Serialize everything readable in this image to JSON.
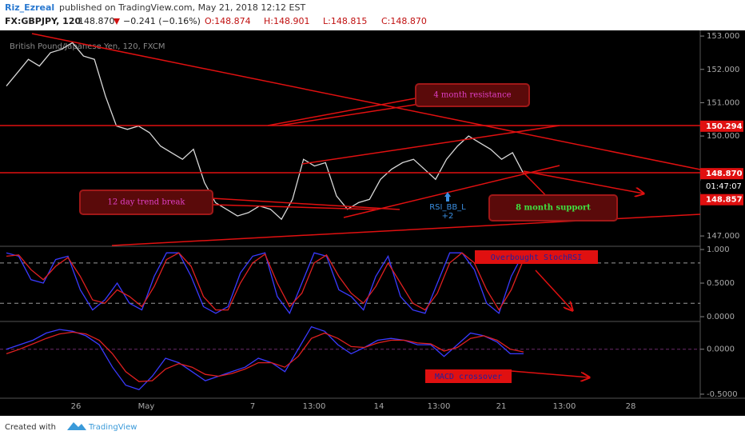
{
  "header": {
    "author": "Riz_Ezreal",
    "published": "published on TradingView.com, May 21, 2018 12:12 EST",
    "symbol": "FX:GBPJPY, 120",
    "last": "148.870",
    "change": "−0.241 (−0.16%)",
    "open": "O:148.874",
    "high": "H:148.901",
    "low": "L:148.815",
    "close": "C:148.870"
  },
  "chart_data": {
    "type": "line",
    "legend": "British Pound/Japanese Yen, 120, FXCM",
    "categories": [
      "26",
      "May",
      "7",
      "13:00",
      "14",
      "13:00",
      "21",
      "13:00",
      "28"
    ],
    "price": {
      "color": "#d8d8d8",
      "values": [
        151.5,
        151.9,
        152.3,
        152.1,
        152.5,
        152.6,
        152.8,
        152.4,
        152.3,
        151.2,
        150.3,
        150.2,
        150.3,
        150.1,
        149.7,
        149.5,
        149.3,
        149.6,
        148.6,
        148.0,
        147.8,
        147.6,
        147.7,
        147.9,
        147.8,
        147.5,
        148.1,
        149.3,
        149.1,
        149.2,
        148.2,
        147.8,
        148.0,
        148.1,
        148.7,
        149.0,
        149.2,
        149.3,
        149.0,
        148.7,
        149.3,
        149.7,
        150.0,
        149.8,
        149.6,
        149.3,
        149.5,
        148.87
      ],
      "ylim": [
        146.69,
        153.17
      ],
      "yticks": [
        {
          "value": 147,
          "label": "147.000"
        },
        {
          "value": 150,
          "label": "150.000"
        },
        {
          "value": 151,
          "label": "151.000"
        },
        {
          "value": 152,
          "label": "152.000"
        },
        {
          "value": 153,
          "label": "153.000"
        }
      ]
    },
    "badges": [
      {
        "value": 150.294,
        "label": "150.294"
      },
      {
        "value": 148.87,
        "label": "148.870"
      },
      {
        "value": 148.857,
        "label": "148.857"
      }
    ],
    "countdown": "01:47:07",
    "stoch": {
      "ylim": [
        -0.071,
        1.048
      ],
      "yticks": [
        {
          "value": 0,
          "label": "0.0000"
        },
        {
          "value": 0.5,
          "label": "0.5000"
        },
        {
          "value": 1,
          "label": "1.000"
        }
      ],
      "bands": [
        0.8,
        0.2
      ],
      "series": [
        {
          "color": "#3a3aff",
          "values": [
            0.95,
            0.9,
            0.55,
            0.5,
            0.85,
            0.9,
            0.4,
            0.1,
            0.25,
            0.5,
            0.2,
            0.1,
            0.6,
            0.95,
            0.95,
            0.6,
            0.15,
            0.05,
            0.15,
            0.65,
            0.9,
            0.95,
            0.3,
            0.05,
            0.5,
            0.95,
            0.9,
            0.4,
            0.3,
            0.1,
            0.6,
            0.9,
            0.3,
            0.1,
            0.05,
            0.5,
            0.95,
            0.95,
            0.7,
            0.2,
            0.05,
            0.6,
            0.95
          ]
        },
        {
          "color": "#e02020",
          "values": [
            0.9,
            0.92,
            0.7,
            0.55,
            0.75,
            0.88,
            0.6,
            0.25,
            0.2,
            0.4,
            0.3,
            0.15,
            0.45,
            0.85,
            0.95,
            0.75,
            0.3,
            0.1,
            0.1,
            0.5,
            0.8,
            0.93,
            0.5,
            0.15,
            0.35,
            0.8,
            0.92,
            0.6,
            0.35,
            0.2,
            0.45,
            0.8,
            0.5,
            0.2,
            0.1,
            0.35,
            0.8,
            0.95,
            0.8,
            0.4,
            0.1,
            0.4,
            0.85
          ]
        }
      ]
    },
    "macd": {
      "ylim": [
        -0.545,
        0.309
      ],
      "yticks": [
        {
          "value": -0.5,
          "label": "-0.5000"
        },
        {
          "value": 0,
          "label": "0.0000"
        }
      ],
      "series": [
        {
          "color": "#3a3aff",
          "values": [
            0.0,
            0.05,
            0.1,
            0.18,
            0.22,
            0.2,
            0.15,
            0.05,
            -0.2,
            -0.4,
            -0.45,
            -0.3,
            -0.1,
            -0.15,
            -0.25,
            -0.35,
            -0.3,
            -0.25,
            -0.2,
            -0.1,
            -0.15,
            -0.25,
            0.0,
            0.25,
            0.2,
            0.05,
            -0.05,
            0.02,
            0.1,
            0.12,
            0.1,
            0.05,
            0.05,
            -0.08,
            0.05,
            0.18,
            0.15,
            0.08,
            -0.05,
            -0.05
          ]
        },
        {
          "color": "#e02020",
          "values": [
            -0.05,
            0.0,
            0.06,
            0.12,
            0.17,
            0.19,
            0.17,
            0.1,
            -0.05,
            -0.25,
            -0.36,
            -0.35,
            -0.22,
            -0.16,
            -0.2,
            -0.28,
            -0.3,
            -0.27,
            -0.22,
            -0.15,
            -0.15,
            -0.2,
            -0.08,
            0.12,
            0.18,
            0.12,
            0.03,
            0.02,
            0.07,
            0.1,
            0.1,
            0.07,
            0.06,
            -0.02,
            0.02,
            0.12,
            0.15,
            0.1,
            0.0,
            -0.03
          ]
        }
      ]
    },
    "annotations": {
      "resistance": "4 month resistance",
      "trend_break": "12 day trend break",
      "support": "8 month support",
      "signal": "RSI_BB_L",
      "signal_count": "+2",
      "stoch_note": "Overbought StochRSI",
      "macd_note": "MACD crossover"
    }
  },
  "footer": {
    "created": "Created with",
    "brand": "TradingView"
  }
}
